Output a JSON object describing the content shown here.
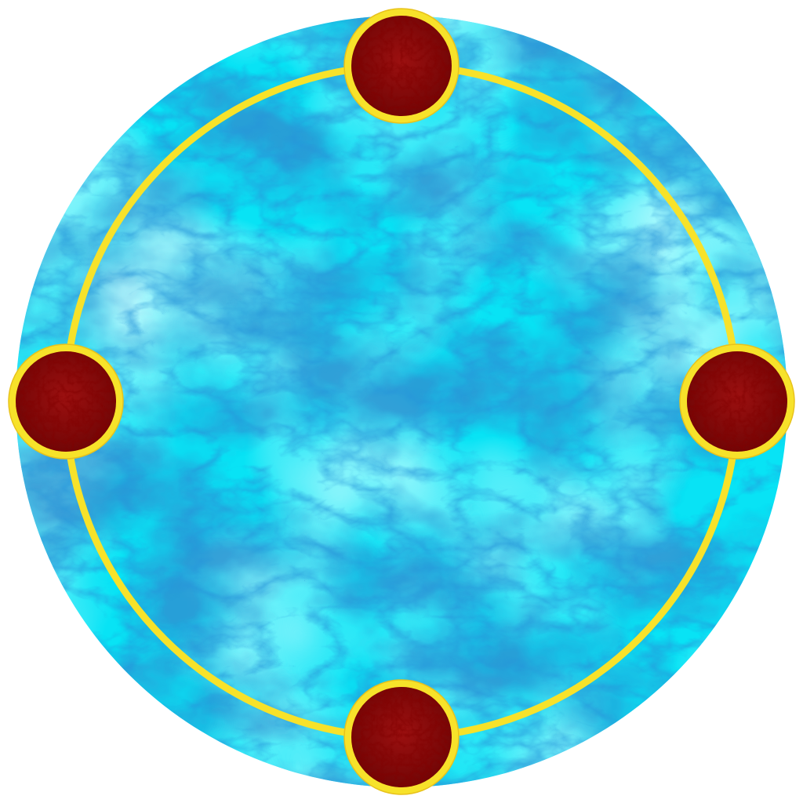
{
  "colors": {
    "page_background": "#ffffff",
    "marble_base": "#08e3f5",
    "marble_light": "#5ef3fb",
    "marble_vein": "#0c6fb8",
    "marble_vein_dark": "#0a3f8f",
    "ring": "#f7e22a",
    "ring_edge": "#e8c21c",
    "node_fill": "#7d0707",
    "node_fill_light": "#a01212",
    "node_texture": "#4a0202"
  },
  "nodes": [
    {
      "name": "top-node",
      "angle_deg": 270
    },
    {
      "name": "right-node",
      "angle_deg": 0
    },
    {
      "name": "bottom-node",
      "angle_deg": 90
    },
    {
      "name": "left-node",
      "angle_deg": 180
    }
  ]
}
